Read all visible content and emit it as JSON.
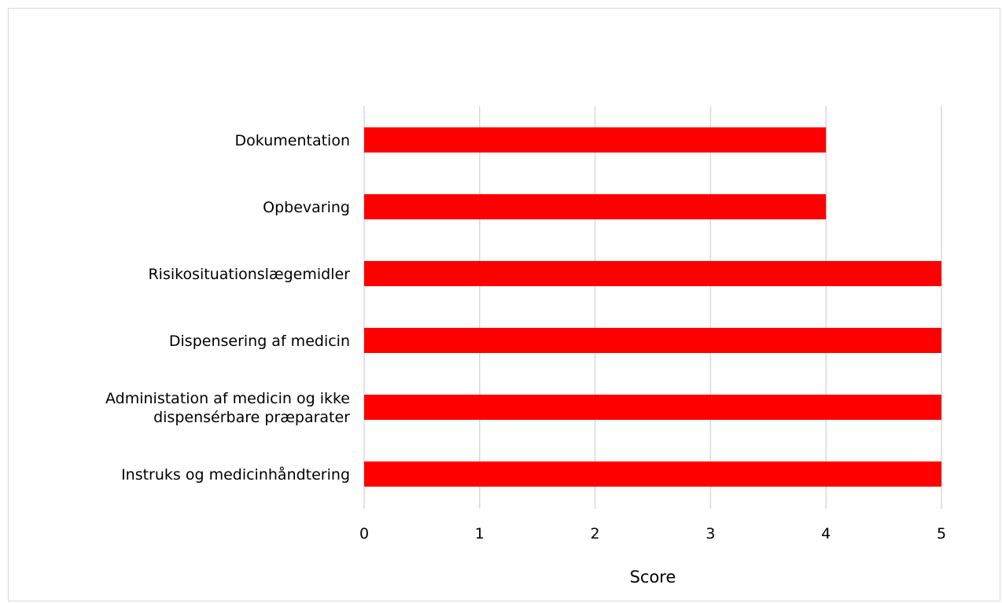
{
  "chart_data": {
    "type": "bar",
    "orientation": "horizontal",
    "title": "",
    "xlabel": "Score",
    "ylabel": "",
    "categories": [
      [
        "Dokumentation"
      ],
      [
        "Opbevaring"
      ],
      [
        "Risikosituationslægemidler"
      ],
      [
        "Dispensering af medicin"
      ],
      [
        "Administation af medicin og ikke",
        "dispensérbare præparater"
      ],
      [
        "Instruks og medicinhåndtering"
      ]
    ],
    "values": [
      4,
      4,
      5,
      5,
      5,
      5
    ],
    "xlim": [
      0,
      5
    ],
    "xticks": [
      "0",
      "1",
      "2",
      "3",
      "4",
      "5"
    ],
    "grid": true,
    "legend": "none",
    "colors": {
      "bar": "#ff0000",
      "grid": "#d9d9d9",
      "frame": "#d9d9d9"
    }
  }
}
